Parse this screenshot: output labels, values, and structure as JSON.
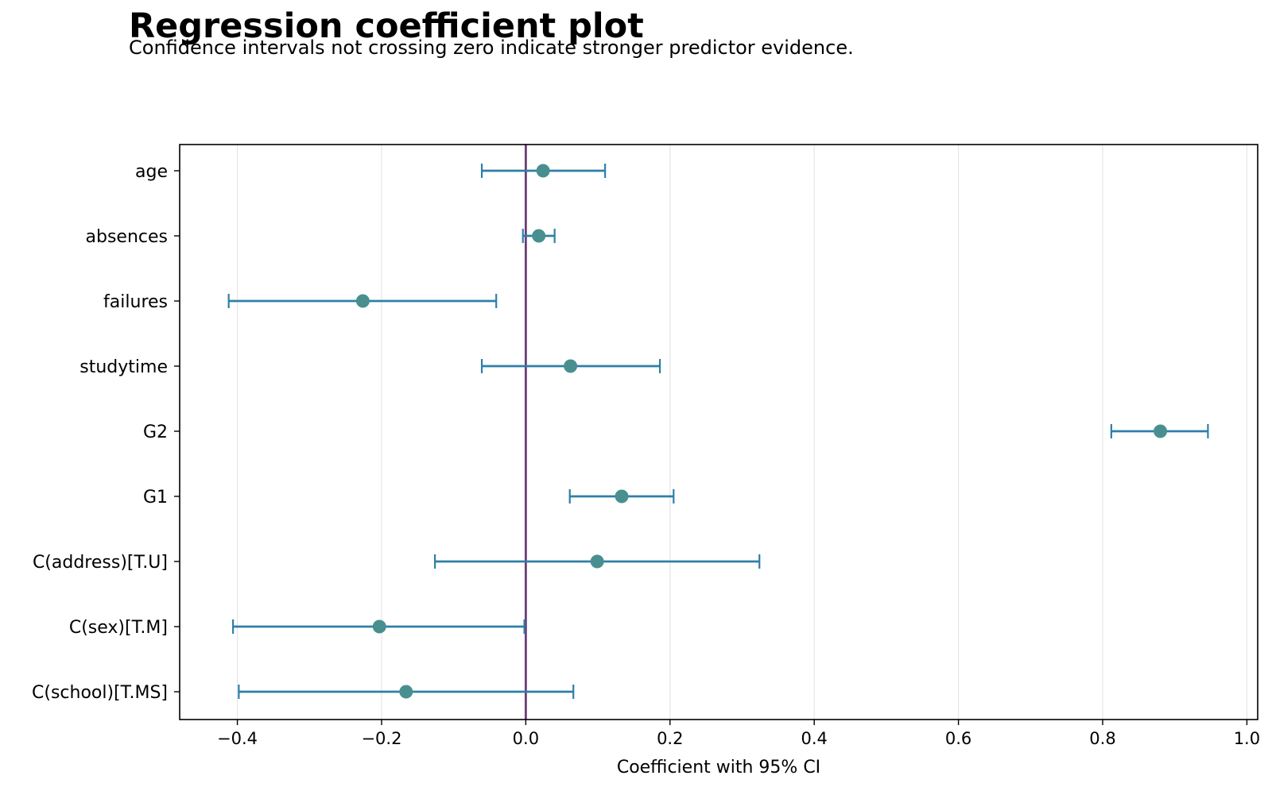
{
  "header": {
    "title": "Regression coefficient plot",
    "subtitle": "Confidence intervals not crossing zero indicate stronger predictor evidence."
  },
  "chart_data": {
    "type": "scatter",
    "title": "Regression coefficient plot",
    "subtitle": "Confidence intervals not crossing zero indicate stronger predictor evidence.",
    "xlabel": "Coefficient with 95% CI",
    "ylabel": "",
    "xlim": [
      -0.48,
      1.015
    ],
    "xticks": [
      -0.4,
      -0.2,
      0.0,
      0.2,
      0.4,
      0.6,
      0.8,
      1.0
    ],
    "xtick_labels": [
      "−0.4",
      "−0.2",
      "0.0",
      "0.2",
      "0.4",
      "0.6",
      "0.8",
      "1.0"
    ],
    "reference_line": 0.0,
    "grid": "vertical",
    "colors": {
      "point": "#4a8f8f",
      "interval": "#2e7fa8",
      "reference": "#6a3d7a",
      "grid": "#e6e6e6"
    },
    "terms": [
      "age",
      "absences",
      "failures",
      "studytime",
      "G2",
      "G1",
      "C(address)[T.U]",
      "C(sex)[T.M]",
      "C(school)[T.MS]"
    ],
    "estimates": [
      0.024,
      0.018,
      -0.226,
      0.062,
      0.88,
      0.133,
      0.099,
      -0.203,
      -0.166
    ],
    "ci_lower": [
      -0.061,
      -0.004,
      -0.412,
      -0.061,
      0.812,
      0.061,
      -0.126,
      -0.406,
      -0.398
    ],
    "ci_upper": [
      0.11,
      0.04,
      -0.041,
      0.186,
      0.946,
      0.205,
      0.324,
      -0.002,
      0.066
    ]
  }
}
